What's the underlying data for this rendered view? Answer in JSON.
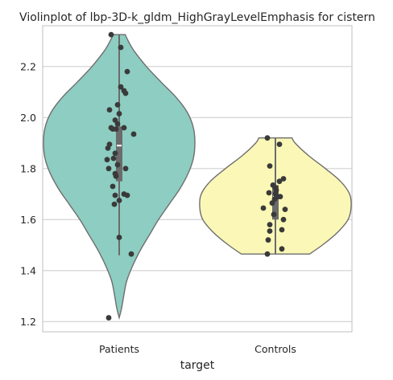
{
  "chart_data": {
    "type": "violin",
    "title": "Violinplot of lbp-3D-k_gldm_HighGrayLevelEmphasis for cistern",
    "xlabel": "target",
    "ylabel": "",
    "ylim": [
      1.16,
      2.36
    ],
    "yticks": [
      1.2,
      1.4,
      1.6,
      1.8,
      2.0,
      2.2
    ],
    "ytick_labels": [
      "1.2",
      "1.4",
      "1.6",
      "1.8",
      "2.0",
      "2.2"
    ],
    "categories": [
      "Patients",
      "Controls"
    ],
    "grid": "horizontal",
    "colors": {
      "Patients": "#8ecdc1",
      "Controls": "#fbf8b7",
      "outline": "#6e6e6e",
      "points": "#3a3a3a",
      "grid": "#d0d0d0"
    },
    "series": [
      {
        "category": "Patients",
        "min": 1.215,
        "max": 2.325,
        "q1": 1.75,
        "median": 1.89,
        "q3": 1.965,
        "whisker_low": 1.46,
        "whisker_high": 2.325,
        "density_profile": [
          [
            1.215,
            0.0
          ],
          [
            1.25,
            0.03
          ],
          [
            1.3,
            0.06
          ],
          [
            1.36,
            0.1
          ],
          [
            1.42,
            0.18
          ],
          [
            1.48,
            0.28
          ],
          [
            1.54,
            0.4
          ],
          [
            1.6,
            0.52
          ],
          [
            1.66,
            0.66
          ],
          [
            1.72,
            0.8
          ],
          [
            1.78,
            0.91
          ],
          [
            1.84,
            0.98
          ],
          [
            1.9,
            1.0
          ],
          [
            1.96,
            0.98
          ],
          [
            2.02,
            0.9
          ],
          [
            2.08,
            0.75
          ],
          [
            2.14,
            0.55
          ],
          [
            2.2,
            0.36
          ],
          [
            2.26,
            0.2
          ],
          [
            2.3,
            0.12
          ],
          [
            2.325,
            0.08
          ]
        ],
        "points": [
          [
            -0.1,
            2.325
          ],
          [
            0.02,
            2.275
          ],
          [
            0.1,
            2.18
          ],
          [
            0.02,
            2.12
          ],
          [
            0.06,
            2.105
          ],
          [
            0.08,
            2.095
          ],
          [
            -0.02,
            2.05
          ],
          [
            -0.12,
            2.03
          ],
          [
            0.0,
            2.015
          ],
          [
            -0.05,
            1.99
          ],
          [
            -0.02,
            1.975
          ],
          [
            -0.1,
            1.96
          ],
          [
            -0.08,
            1.955
          ],
          [
            -0.04,
            1.955
          ],
          [
            0.06,
            1.96
          ],
          [
            0.18,
            1.935
          ],
          [
            -0.12,
            1.895
          ],
          [
            -0.14,
            1.88
          ],
          [
            -0.05,
            1.86
          ],
          [
            -0.07,
            1.84
          ],
          [
            -0.15,
            1.835
          ],
          [
            -0.02,
            1.815
          ],
          [
            0.08,
            1.8
          ],
          [
            -0.13,
            1.8
          ],
          [
            -0.05,
            1.78
          ],
          [
            -0.04,
            1.77
          ],
          [
            -0.08,
            1.73
          ],
          [
            0.06,
            1.7
          ],
          [
            0.1,
            1.695
          ],
          [
            -0.05,
            1.695
          ],
          [
            0.0,
            1.675
          ],
          [
            -0.06,
            1.66
          ],
          [
            0.0,
            1.53
          ],
          [
            0.15,
            1.465
          ],
          [
            -0.13,
            1.215
          ]
        ]
      },
      {
        "category": "Controls",
        "min": 1.465,
        "max": 1.92,
        "q1": 1.6,
        "median": 1.69,
        "q3": 1.735,
        "whisker_low": 1.465,
        "whisker_high": 1.92,
        "density_profile": [
          [
            1.465,
            0.45
          ],
          [
            1.5,
            0.62
          ],
          [
            1.55,
            0.82
          ],
          [
            1.6,
            0.96
          ],
          [
            1.65,
            1.0
          ],
          [
            1.7,
            0.98
          ],
          [
            1.75,
            0.86
          ],
          [
            1.8,
            0.66
          ],
          [
            1.85,
            0.44
          ],
          [
            1.9,
            0.26
          ],
          [
            1.92,
            0.22
          ]
        ],
        "points": [
          [
            -0.1,
            1.92
          ],
          [
            0.05,
            1.895
          ],
          [
            -0.07,
            1.81
          ],
          [
            0.1,
            1.76
          ],
          [
            0.05,
            1.75
          ],
          [
            -0.03,
            1.735
          ],
          [
            0.0,
            1.725
          ],
          [
            0.01,
            1.715
          ],
          [
            -0.08,
            1.705
          ],
          [
            0.0,
            1.7
          ],
          [
            0.03,
            1.69
          ],
          [
            0.06,
            1.69
          ],
          [
            -0.01,
            1.68
          ],
          [
            -0.04,
            1.665
          ],
          [
            -0.15,
            1.645
          ],
          [
            0.12,
            1.64
          ],
          [
            -0.02,
            1.62
          ],
          [
            0.1,
            1.6
          ],
          [
            -0.07,
            1.58
          ],
          [
            0.08,
            1.56
          ],
          [
            -0.07,
            1.555
          ],
          [
            -0.09,
            1.52
          ],
          [
            0.08,
            1.485
          ],
          [
            -0.1,
            1.465
          ]
        ]
      }
    ]
  }
}
